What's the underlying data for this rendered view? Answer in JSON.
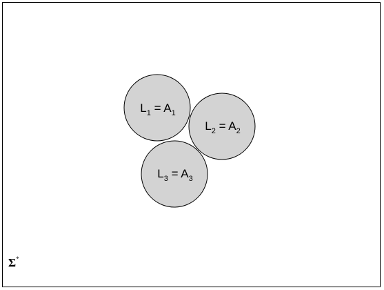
{
  "diagram": {
    "universe_label": {
      "symbol": "Σ",
      "superscript": "*"
    },
    "sets": [
      {
        "name": "L",
        "index": "1",
        "equals": " = ",
        "value_name": "A",
        "value_index": "1"
      },
      {
        "name": "L",
        "index": "2",
        "equals": " = ",
        "value_name": "A",
        "value_index": "2"
      },
      {
        "name": "L",
        "index": "3",
        "equals": " = ",
        "value_name": "A",
        "value_index": "3"
      }
    ],
    "colors": {
      "circle_fill": "#d3d3d3",
      "stroke": "#000000",
      "background": "#ffffff"
    }
  }
}
